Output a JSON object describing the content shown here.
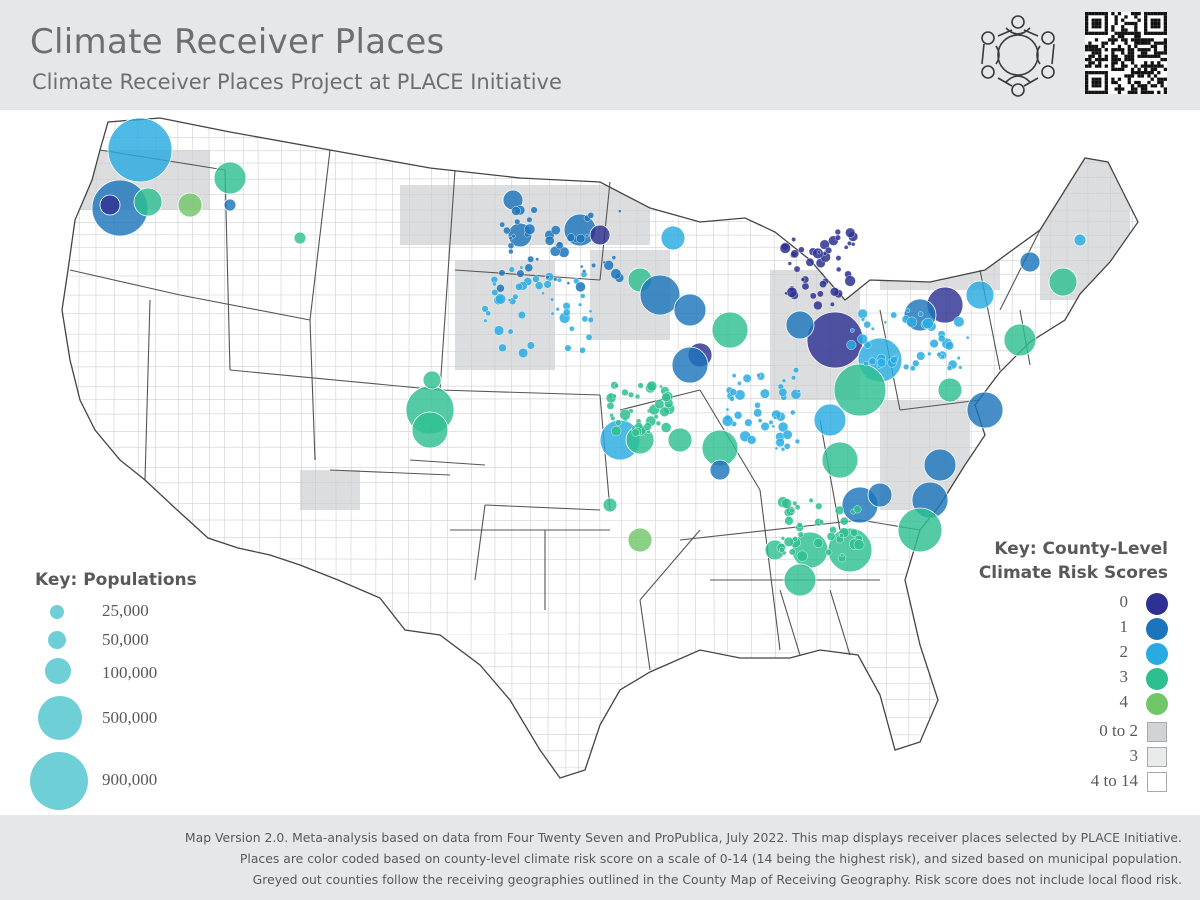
{
  "header": {
    "title": "Climate Receiver Places",
    "subtitle": "Climate Receiver Places Project at PLACE Initiative"
  },
  "key_populations": {
    "title": "Key: Populations",
    "items": [
      {
        "label": "25,000",
        "population": 25000
      },
      {
        "label": "50,000",
        "population": 50000
      },
      {
        "label": "100,000",
        "population": 100000
      },
      {
        "label": "500,000",
        "population": 500000
      },
      {
        "label": "900,000",
        "population": 900000
      }
    ]
  },
  "key_risk": {
    "title_line1": "Key: County-Level",
    "title_line2": "Climate Risk Scores",
    "place_scores": [
      {
        "label": "0",
        "color": "#2e3192"
      },
      {
        "label": "1",
        "color": "#1c75bc"
      },
      {
        "label": "2",
        "color": "#29abe2"
      },
      {
        "label": "3",
        "color": "#2ebf91"
      },
      {
        "label": "4",
        "color": "#72c66a"
      }
    ],
    "county_scores": [
      {
        "label": "0 to 2",
        "fill": "#d1d3d4"
      },
      {
        "label": "3",
        "fill": "#e9eaea"
      },
      {
        "label": "4 to 14",
        "fill": "#ffffff"
      }
    ]
  },
  "footer": {
    "line1": "Map Version 2.0. Meta-analysis based on data from Four Twenty Seven and ProPublica, July 2022. This map displays receiver places selected by PLACE Initiative.",
    "line2": "Places are color coded based on county-level climate risk score on a scale of 0-14 (14 being the highest risk), and sized based on municipal population.",
    "line3": "Greyed out counties follow the receiving geographies outlined in the County Map of Receiving Geography. Risk score does not include local flood risk."
  },
  "colors": {
    "band": "#e6e7e8",
    "text": "#58595b",
    "title_text": "#6d6e71",
    "population_key": "#6fcfd6",
    "state_border": "#555555",
    "county_line": "#c7c8ca"
  },
  "icons": [
    "people-circle-logo",
    "qr-code"
  ]
}
